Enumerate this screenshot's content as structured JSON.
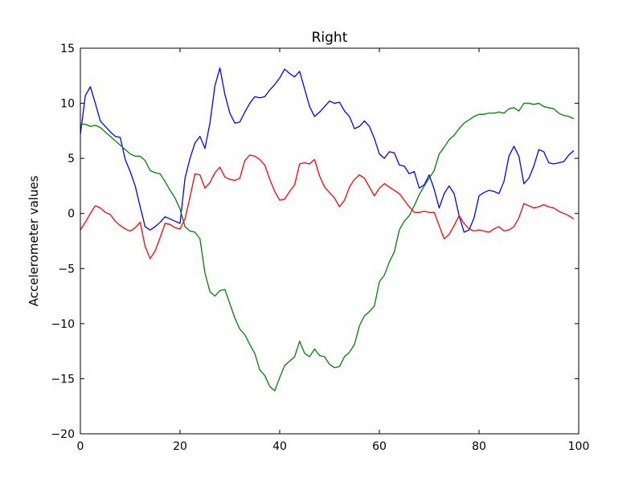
{
  "chart_data": {
    "type": "line",
    "title": "Right",
    "xlabel": "",
    "ylabel": "Accelerometer values",
    "xlim": [
      0,
      100
    ],
    "ylim": [
      -20,
      15
    ],
    "xticks": [
      0,
      20,
      40,
      60,
      80,
      100
    ],
    "yticks": [
      -20,
      -15,
      -10,
      -5,
      0,
      5,
      10,
      15
    ],
    "grid": false,
    "legend": "none",
    "x": [
      0,
      1,
      2,
      3,
      4,
      5,
      6,
      7,
      8,
      9,
      10,
      11,
      12,
      13,
      14,
      15,
      16,
      17,
      18,
      19,
      20,
      21,
      22,
      23,
      24,
      25,
      26,
      27,
      28,
      29,
      30,
      31,
      32,
      33,
      34,
      35,
      36,
      37,
      38,
      39,
      40,
      41,
      42,
      43,
      44,
      45,
      46,
      47,
      48,
      49,
      50,
      51,
      52,
      53,
      54,
      55,
      56,
      57,
      58,
      59,
      60,
      61,
      62,
      63,
      64,
      65,
      66,
      67,
      68,
      69,
      70,
      71,
      72,
      73,
      74,
      75,
      76,
      77,
      78,
      79,
      80,
      81,
      82,
      83,
      84,
      85,
      86,
      87,
      88,
      89,
      90,
      91,
      92,
      93,
      94,
      95,
      96,
      97,
      98,
      99
    ],
    "series": [
      {
        "color": "#0000ff",
        "values": [
          7.2,
          10.7,
          11.5,
          10.0,
          8.4,
          7.9,
          7.4,
          7.0,
          6.9,
          4.9,
          3.8,
          2.5,
          0.6,
          -1.2,
          -1.5,
          -1.2,
          -0.8,
          -0.3,
          -0.5,
          -0.7,
          -0.9,
          3.2,
          5.0,
          6.4,
          7.0,
          5.9,
          8.2,
          11.6,
          13.2,
          10.8,
          9.1,
          8.2,
          8.3,
          9.2,
          10.0,
          10.6,
          10.5,
          10.6,
          11.2,
          11.7,
          12.3,
          13.1,
          12.7,
          12.4,
          12.9,
          11.3,
          9.7,
          8.8,
          9.2,
          9.7,
          10.2,
          10.0,
          10.1,
          9.3,
          8.8,
          7.7,
          7.9,
          8.4,
          7.9,
          6.8,
          5.4,
          5.0,
          5.6,
          5.5,
          4.4,
          4.3,
          3.6,
          3.8,
          2.3,
          2.6,
          3.5,
          2.2,
          0.5,
          1.8,
          2.5,
          1.8,
          -0.2,
          -1.7,
          -1.5,
          -0.4,
          1.6,
          1.9,
          2.1,
          2.0,
          1.8,
          2.9,
          5.2,
          6.1,
          5.2,
          2.7,
          3.2,
          4.3,
          5.8,
          5.6,
          4.6,
          4.5,
          4.6,
          4.7,
          5.3,
          5.7
        ]
      },
      {
        "color": "#008000",
        "values": [
          8.1,
          8.1,
          7.9,
          8.0,
          7.8,
          7.4,
          7.0,
          6.6,
          6.2,
          5.8,
          5.4,
          5.2,
          5.2,
          4.8,
          3.9,
          3.7,
          3.6,
          2.9,
          2.1,
          1.4,
          0.4,
          -1.2,
          -1.6,
          -1.7,
          -2.3,
          -5.4,
          -7.1,
          -7.5,
          -7.0,
          -6.9,
          -8.2,
          -9.5,
          -10.5,
          -11.0,
          -11.9,
          -12.7,
          -14.2,
          -14.7,
          -15.7,
          -16.1,
          -14.9,
          -13.8,
          -13.4,
          -13.0,
          -11.6,
          -12.7,
          -13.0,
          -12.3,
          -12.9,
          -13.0,
          -13.7,
          -14.0,
          -13.9,
          -13.0,
          -12.6,
          -11.9,
          -10.2,
          -9.3,
          -8.9,
          -8.4,
          -6.2,
          -5.6,
          -4.4,
          -3.5,
          -1.5,
          -0.7,
          -0.2,
          0.7,
          1.7,
          2.5,
          3.2,
          3.9,
          5.4,
          6.0,
          6.7,
          7.1,
          7.7,
          8.2,
          8.5,
          8.8,
          9.0,
          9.0,
          9.1,
          9.1,
          9.2,
          9.1,
          9.5,
          9.6,
          9.3,
          10.0,
          10.0,
          9.9,
          10.0,
          9.7,
          9.6,
          9.5,
          9.1,
          8.9,
          8.8,
          8.6
        ]
      },
      {
        "color": "#ff0000",
        "values": [
          -1.5,
          -0.8,
          0.0,
          0.7,
          0.5,
          0.1,
          -0.1,
          -0.7,
          -1.1,
          -1.4,
          -1.6,
          -1.3,
          -0.8,
          -3.0,
          -4.1,
          -3.4,
          -2.2,
          -0.9,
          -1.0,
          -1.3,
          -1.4,
          -0.5,
          1.5,
          3.6,
          3.5,
          2.3,
          2.8,
          3.7,
          4.2,
          3.3,
          3.1,
          3.0,
          3.2,
          4.8,
          5.3,
          5.2,
          4.9,
          4.4,
          3.1,
          2.0,
          1.2,
          1.3,
          2.0,
          2.6,
          4.5,
          4.6,
          4.5,
          4.9,
          3.4,
          2.4,
          1.9,
          1.4,
          0.6,
          1.2,
          2.4,
          3.1,
          3.5,
          3.2,
          2.4,
          1.6,
          2.3,
          2.7,
          2.4,
          2.1,
          1.8,
          1.2,
          0.6,
          0.1,
          0.1,
          0.2,
          0.1,
          0.1,
          -1.1,
          -2.3,
          -1.9,
          -1.1,
          -0.2,
          -0.9,
          -1.4,
          -1.6,
          -1.5,
          -1.6,
          -1.7,
          -1.4,
          -1.2,
          -1.6,
          -1.5,
          -1.2,
          -0.4,
          0.9,
          0.7,
          0.5,
          0.6,
          0.8,
          0.6,
          0.5,
          0.2,
          0.0,
          -0.2,
          -0.5
        ]
      }
    ]
  }
}
